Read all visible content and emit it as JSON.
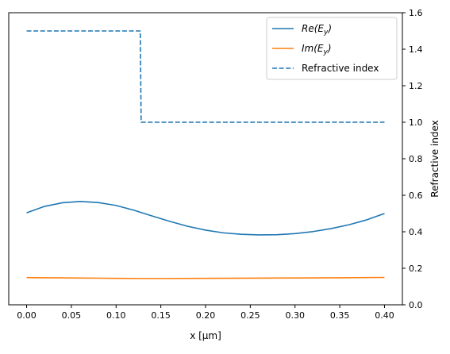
{
  "chart_data": {
    "type": "line",
    "xlabel": "x [μm]",
    "ylabel_right": "Refractive index",
    "xlim": [
      -0.02,
      0.42
    ],
    "ylim_right": [
      0.0,
      1.6
    ],
    "x_ticks": [
      0.0,
      0.05,
      0.1,
      0.15,
      0.2,
      0.25,
      0.3,
      0.35,
      0.4
    ],
    "x_tick_labels": [
      "0.00",
      "0.05",
      "0.10",
      "0.15",
      "0.20",
      "0.25",
      "0.30",
      "0.35",
      "0.40"
    ],
    "y_right_ticks": [
      0.0,
      0.2,
      0.4,
      0.6,
      0.8,
      1.0,
      1.2,
      1.4,
      1.6
    ],
    "y_right_tick_labels": [
      "0.0",
      "0.2",
      "0.4",
      "0.6",
      "0.8",
      "1.0",
      "1.2",
      "1.4",
      "1.6"
    ],
    "legend_position": "top-right",
    "grid": false,
    "series": [
      {
        "name": "Re(E_y)",
        "legend_main": "Re(E",
        "legend_sub": "y",
        "legend_close": ")",
        "color": "#1f77b4",
        "style": "solid",
        "x": [
          0.0,
          0.02,
          0.04,
          0.06,
          0.08,
          0.1,
          0.12,
          0.14,
          0.16,
          0.18,
          0.2,
          0.22,
          0.24,
          0.26,
          0.28,
          0.3,
          0.32,
          0.34,
          0.36,
          0.38,
          0.4
        ],
        "y": [
          0.504,
          0.539,
          0.559,
          0.566,
          0.56,
          0.544,
          0.518,
          0.487,
          0.457,
          0.43,
          0.409,
          0.394,
          0.386,
          0.383,
          0.384,
          0.39,
          0.401,
          0.417,
          0.438,
          0.465,
          0.5
        ]
      },
      {
        "name": "Im(E_y)",
        "legend_main": "Im(E",
        "legend_sub": "y",
        "legend_close": ")",
        "color": "#ff7f0e",
        "style": "solid",
        "x": [
          0.0,
          0.05,
          0.1,
          0.13,
          0.15,
          0.2,
          0.25,
          0.3,
          0.35,
          0.4
        ],
        "y": [
          0.149,
          0.147,
          0.145,
          0.144,
          0.144,
          0.145,
          0.146,
          0.147,
          0.148,
          0.15
        ]
      },
      {
        "name": "Refractive index",
        "legend_main": "Refractive index",
        "legend_sub": "",
        "legend_close": "",
        "color": "#1f77b4",
        "style": "dashed",
        "x": [
          0.0,
          0.127,
          0.128,
          0.4
        ],
        "y": [
          1.5,
          1.5,
          1.0,
          1.0
        ]
      }
    ]
  }
}
